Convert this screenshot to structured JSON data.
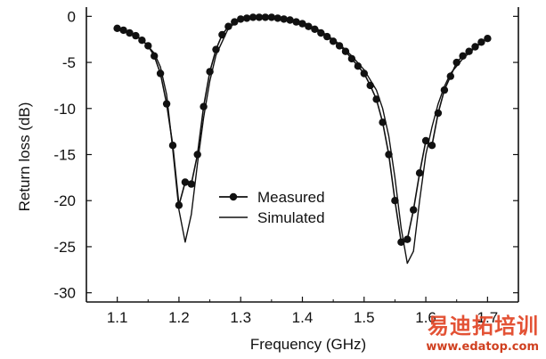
{
  "chart_data": {
    "type": "line",
    "title": "",
    "xlabel": "Frequency (GHz)",
    "ylabel": "Return loss (dB)",
    "xlim": [
      1.05,
      1.75
    ],
    "ylim": [
      -31,
      1
    ],
    "xticks": [
      1.1,
      1.2,
      1.3,
      1.4,
      1.5,
      1.6,
      1.7
    ],
    "xtick_labels": [
      "1.1",
      "1.2",
      "1.3",
      "1.4",
      "1.5",
      "1.6",
      "1.7"
    ],
    "yticks": [
      0,
      -5,
      -10,
      -15,
      -20,
      -25,
      -30
    ],
    "ytick_labels": [
      "0",
      "-5",
      "-10",
      "-15",
      "-20",
      "-25",
      "-30"
    ],
    "grid": false,
    "legend_position": "center",
    "series": [
      {
        "name": "Measured",
        "style": "line-with-markers",
        "color": "#111111",
        "x": [
          1.1,
          1.11,
          1.12,
          1.13,
          1.14,
          1.15,
          1.16,
          1.17,
          1.18,
          1.19,
          1.2,
          1.21,
          1.22,
          1.23,
          1.24,
          1.25,
          1.26,
          1.27,
          1.28,
          1.29,
          1.3,
          1.31,
          1.32,
          1.33,
          1.34,
          1.35,
          1.36,
          1.37,
          1.38,
          1.39,
          1.4,
          1.41,
          1.42,
          1.43,
          1.44,
          1.45,
          1.46,
          1.47,
          1.48,
          1.49,
          1.5,
          1.51,
          1.52,
          1.53,
          1.54,
          1.55,
          1.56,
          1.57,
          1.58,
          1.59,
          1.6,
          1.61,
          1.62,
          1.63,
          1.64,
          1.65,
          1.66,
          1.67,
          1.68,
          1.69,
          1.7
        ],
        "y": [
          -1.3,
          -1.5,
          -1.8,
          -2.1,
          -2.6,
          -3.2,
          -4.3,
          -6.2,
          -9.5,
          -14.0,
          -20.5,
          -18.0,
          -18.2,
          -15.0,
          -9.8,
          -6.0,
          -3.6,
          -2.0,
          -1.1,
          -0.6,
          -0.3,
          -0.2,
          -0.1,
          -0.1,
          -0.1,
          -0.1,
          -0.2,
          -0.3,
          -0.4,
          -0.6,
          -0.8,
          -1.1,
          -1.4,
          -1.8,
          -2.2,
          -2.7,
          -3.2,
          -3.8,
          -4.6,
          -5.4,
          -6.2,
          -7.5,
          -9.0,
          -11.5,
          -15.0,
          -20.0,
          -24.5,
          -24.2,
          -21.0,
          -17.0,
          -13.5,
          -14.0,
          -10.5,
          -8.0,
          -6.5,
          -5.0,
          -4.3,
          -3.8,
          -3.3,
          -2.8,
          -2.4
        ]
      },
      {
        "name": "Simulated",
        "style": "line",
        "color": "#111111",
        "x": [
          1.1,
          1.12,
          1.14,
          1.16,
          1.17,
          1.18,
          1.19,
          1.2,
          1.21,
          1.22,
          1.23,
          1.24,
          1.25,
          1.26,
          1.28,
          1.3,
          1.33,
          1.36,
          1.4,
          1.43,
          1.46,
          1.48,
          1.5,
          1.52,
          1.53,
          1.54,
          1.55,
          1.56,
          1.57,
          1.58,
          1.59,
          1.6,
          1.61,
          1.62,
          1.63,
          1.64,
          1.66,
          1.68,
          1.7
        ],
        "y": [
          -1.2,
          -1.7,
          -2.5,
          -4.0,
          -5.5,
          -8.5,
          -14.5,
          -21.0,
          -24.5,
          -21.5,
          -16.0,
          -11.0,
          -7.0,
          -4.2,
          -1.3,
          -0.3,
          -0.1,
          -0.1,
          -0.6,
          -1.6,
          -3.0,
          -4.3,
          -5.8,
          -8.0,
          -10.0,
          -13.0,
          -17.5,
          -23.0,
          -26.8,
          -25.5,
          -20.0,
          -15.0,
          -12.0,
          -9.5,
          -7.6,
          -6.2,
          -4.6,
          -3.4,
          -2.4
        ]
      }
    ]
  },
  "watermark": {
    "main_text": "易迪拓培训",
    "url_text": "www.edatop.com"
  }
}
